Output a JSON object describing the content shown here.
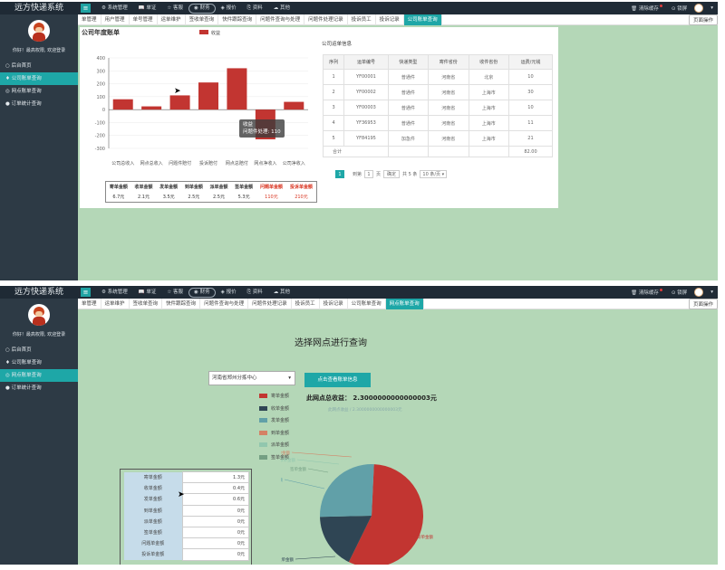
{
  "app": {
    "brand": "远方快递系统",
    "menu_icon": "≡"
  },
  "menus": [
    "系统管理",
    "单证",
    "客服",
    "财务",
    "报价",
    "资料",
    "其他"
  ],
  "menu_icons": [
    "gear-icon",
    "book-icon",
    "star-icon",
    "circle-icon",
    "tag-icon",
    "folder-icon",
    "cloud-icon"
  ],
  "menu_glyphs": [
    "⚙",
    "📖",
    "☆",
    "◉",
    "◈",
    "⎘",
    "☁"
  ],
  "right": {
    "clear": "清除缓存",
    "lock": "锁屏"
  },
  "sidebar": {
    "welcome": "你好！最高权限, 欢迎登录",
    "items": [
      "后台首页",
      "公司账单查询",
      "网点账单查询",
      "订单统计查询"
    ],
    "icons": [
      "home-icon",
      "diamond-icon",
      "diamond-icon",
      "circle-icon"
    ],
    "glyphs": [
      "○",
      "♦",
      "◎",
      "●"
    ]
  },
  "frame1": {
    "tabs": [
      "单管理",
      "用户管理",
      "单号管理",
      "运单维护",
      "签收单查询",
      "快件跟踪查询",
      "问题件查询与处理",
      "问题件处理记录",
      "投诉员工",
      "投诉记录",
      "公司账单查询",
      "页面操作"
    ],
    "active_tab": 10,
    "chart_title": "公司年度账单",
    "order_title": "公司运单信息",
    "order_headers": [
      "序列",
      "运单编号",
      "快递类型",
      "寄件省份",
      "收件省份",
      "运费/元钱"
    ],
    "orders": [
      [
        "1",
        "YF00001",
        "普通件",
        "河南省",
        "北京",
        "10"
      ],
      [
        "2",
        "YF00002",
        "普通件",
        "河南省",
        "上海市",
        "30"
      ],
      [
        "3",
        "YF00003",
        "普通件",
        "河南省",
        "上海市",
        "10"
      ],
      [
        "4",
        "YF36953",
        "普通件",
        "河南省",
        "上海市",
        "11"
      ],
      [
        "5",
        "YF84195",
        "加急件",
        "河南省",
        "上海市",
        "21"
      ]
    ],
    "total_label": "合计",
    "total_value": "82.00",
    "pager": {
      "page": "1",
      "goto_label": "到第",
      "page_suffix": "页",
      "confirm": "确定",
      "total": "共 5 条",
      "per_page": "10 条/页 ▾"
    },
    "sum_headers": [
      "寄单金额",
      "收单金额",
      "发单金额",
      "到单金额",
      "派单金额",
      "签单金额",
      "问题单金额",
      "投诉单金额"
    ],
    "sum_values": [
      "6.7元",
      "2.1元",
      "3.5元",
      "2.5元",
      "2.5元",
      "5.3元",
      "110元",
      "210元"
    ],
    "tooltip": {
      "title": "收益",
      "line": "问题件处理: 110"
    }
  },
  "frame2": {
    "tabs": [
      "单管理",
      "运单维护",
      "签收单查询",
      "快件跟踪查询",
      "问题件查询与处理",
      "问题件处理记录",
      "投诉员工",
      "投诉记录",
      "公司账单查询",
      "网点账单查询",
      "页面操作"
    ],
    "active_tab": 9,
    "title": "选择网点进行查询",
    "select_value": "河南省郑州分拣中心",
    "button": "点击查看账单信息",
    "total_label": "此网点总收益： 2.3000000000000003元",
    "pie_subtitle": "此网点收益 / 2.3000000000000003元",
    "legend": [
      "寄单金额",
      "收单金额",
      "发单金额",
      "到单金额",
      "派单金额",
      "签单金额"
    ],
    "amounts": [
      [
        "寄单金额",
        "1.3元"
      ],
      [
        "收单金额",
        "0.4元"
      ],
      [
        "发单金额",
        "0.6元"
      ],
      [
        "到单金额",
        "0元"
      ],
      [
        "派单金额",
        "0元"
      ],
      [
        "签单金额",
        "0元"
      ],
      [
        "问题单金额",
        "0元"
      ],
      [
        "投诉单金额",
        "0元"
      ]
    ],
    "pie_labels": [
      "寄单金额",
      "收单金额",
      "发单金额",
      "到单金额",
      "派单金额",
      "签单金额"
    ]
  },
  "colors": {
    "red": "#c23531",
    "navy": "#2f4554",
    "teal": "#61a0a8",
    "orange": "#d48265",
    "green1": "#91c7ae",
    "green2": "#749f83",
    "accent": "#1ea7a7"
  },
  "chart_data": [
    {
      "type": "bar",
      "title": "公司年度账单",
      "legend": [
        "收益"
      ],
      "categories": [
        "公司总收入",
        "网点总收入",
        "问题件赔付",
        "投诉赔付",
        "网点总赔付",
        "网点净收入",
        "公司净收入"
      ],
      "values": [
        80,
        25,
        110,
        210,
        320,
        -230,
        60
      ],
      "ylim": [
        -300,
        400
      ],
      "yticks": [
        400,
        300,
        200,
        100,
        0,
        -100,
        -200,
        -300
      ]
    },
    {
      "type": "pie",
      "title": "选择网点进行查询",
      "categories": [
        "寄单金额",
        "收单金额",
        "发单金额",
        "到单金额",
        "派单金额",
        "签单金额"
      ],
      "values": [
        1.3,
        0.4,
        0.6,
        0,
        0,
        0
      ]
    }
  ]
}
